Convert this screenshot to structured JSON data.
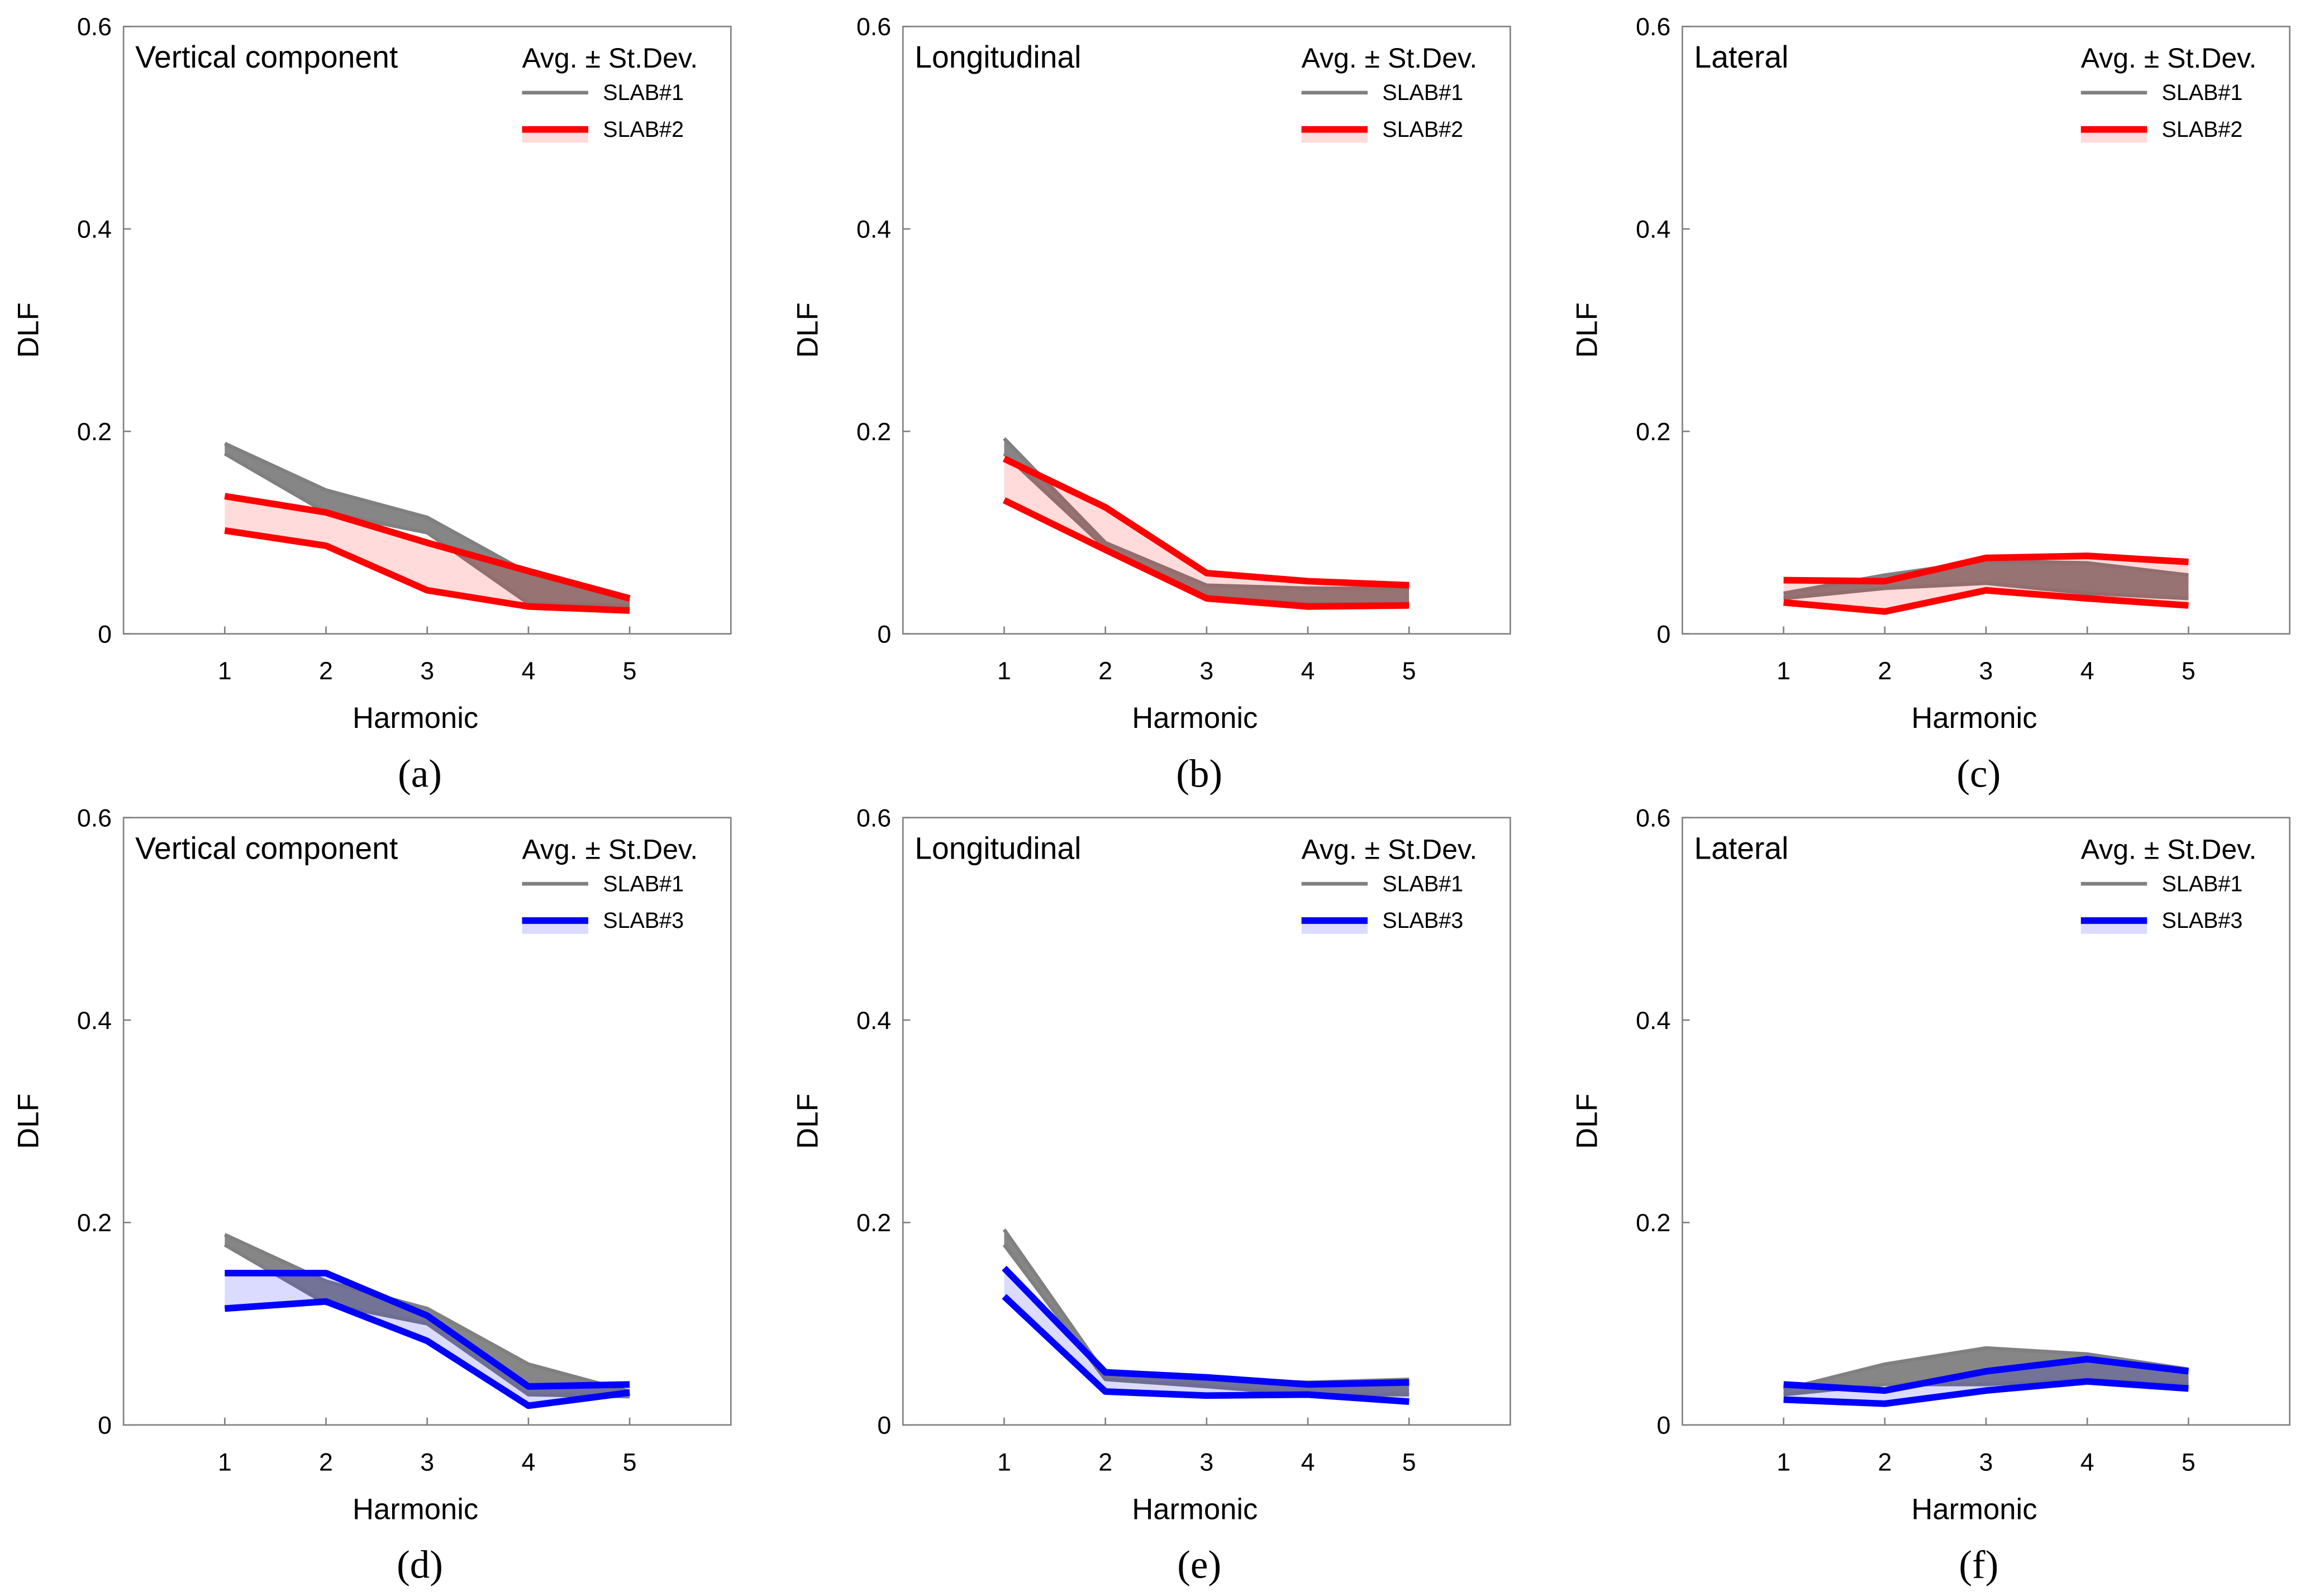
{
  "chart_data": [
    {
      "type": "band",
      "label": "(a)",
      "title": "Vertical component",
      "legend_title": "Avg. ± St.Dev.",
      "x_label": "Harmonic",
      "y_label": "DLF",
      "x": [
        1,
        2,
        3,
        4,
        5
      ],
      "xlim": [
        0,
        6
      ],
      "xticks": [
        1,
        2,
        3,
        4,
        5
      ],
      "ylim": [
        0,
        0.6
      ],
      "yticks": [
        0,
        0.2,
        0.4,
        0.6
      ],
      "series": [
        {
          "name": "SLAB#1",
          "color": "#808080",
          "upper": [
            0.188,
            0.142,
            0.115,
            0.06,
            0.033
          ],
          "lower": [
            0.178,
            0.12,
            0.1,
            0.03,
            0.028
          ]
        },
        {
          "name": "SLAB#2",
          "color": "#ff0000",
          "upper": [
            0.136,
            0.12,
            0.09,
            0.062,
            0.035
          ],
          "lower": [
            0.102,
            0.087,
            0.043,
            0.027,
            0.023
          ]
        }
      ]
    },
    {
      "type": "band",
      "label": "(b)",
      "title": "Longitudinal",
      "legend_title": "Avg. ± St.Dev.",
      "x_label": "Harmonic",
      "y_label": "DLF",
      "x": [
        1,
        2,
        3,
        4,
        5
      ],
      "xlim": [
        0,
        6
      ],
      "xticks": [
        1,
        2,
        3,
        4,
        5
      ],
      "ylim": [
        0,
        0.6
      ],
      "yticks": [
        0,
        0.2,
        0.4,
        0.6
      ],
      "series": [
        {
          "name": "SLAB#1",
          "color": "#808080",
          "upper": [
            0.193,
            0.09,
            0.048,
            0.045,
            0.045
          ],
          "lower": [
            0.178,
            0.085,
            0.035,
            0.03,
            0.03
          ]
        },
        {
          "name": "SLAB#2",
          "color": "#ff0000",
          "upper": [
            0.173,
            0.125,
            0.06,
            0.052,
            0.048
          ],
          "lower": [
            0.132,
            0.083,
            0.035,
            0.027,
            0.028
          ]
        }
      ]
    },
    {
      "type": "band",
      "label": "(c)",
      "title": "Lateral",
      "legend_title": "Avg. ± St.Dev.",
      "x_label": "Harmonic",
      "y_label": "DLF",
      "x": [
        1,
        2,
        3,
        4,
        5
      ],
      "xlim": [
        0,
        6
      ],
      "xticks": [
        1,
        2,
        3,
        4,
        5
      ],
      "ylim": [
        0,
        0.6
      ],
      "yticks": [
        0,
        0.2,
        0.4,
        0.6
      ],
      "series": [
        {
          "name": "SLAB#1",
          "color": "#808080",
          "upper": [
            0.04,
            0.058,
            0.072,
            0.07,
            0.058
          ],
          "lower": [
            0.035,
            0.045,
            0.05,
            0.04,
            0.035
          ]
        },
        {
          "name": "SLAB#2",
          "color": "#ff0000",
          "upper": [
            0.053,
            0.052,
            0.075,
            0.077,
            0.071
          ],
          "lower": [
            0.031,
            0.022,
            0.043,
            0.035,
            0.028
          ]
        }
      ]
    },
    {
      "type": "band",
      "label": "(d)",
      "title": "Vertical component",
      "legend_title": "Avg. ± St.Dev.",
      "x_label": "Harmonic",
      "y_label": "DLF",
      "x": [
        1,
        2,
        3,
        4,
        5
      ],
      "xlim": [
        0,
        6
      ],
      "xticks": [
        1,
        2,
        3,
        4,
        5
      ],
      "ylim": [
        0,
        0.6
      ],
      "yticks": [
        0,
        0.2,
        0.4,
        0.6
      ],
      "series": [
        {
          "name": "SLAB#1",
          "color": "#808080",
          "upper": [
            0.188,
            0.142,
            0.115,
            0.06,
            0.033
          ],
          "lower": [
            0.178,
            0.12,
            0.1,
            0.03,
            0.028
          ]
        },
        {
          "name": "SLAB#3",
          "color": "#0000ff",
          "upper": [
            0.15,
            0.15,
            0.108,
            0.038,
            0.04
          ],
          "lower": [
            0.115,
            0.122,
            0.083,
            0.019,
            0.032
          ]
        }
      ]
    },
    {
      "type": "band",
      "label": "(e)",
      "title": "Longitudinal",
      "legend_title": "Avg. ± St.Dev.",
      "x_label": "Harmonic",
      "y_label": "DLF",
      "x": [
        1,
        2,
        3,
        4,
        5
      ],
      "xlim": [
        0,
        6
      ],
      "xticks": [
        1,
        2,
        3,
        4,
        5
      ],
      "ylim": [
        0,
        0.6
      ],
      "yticks": [
        0,
        0.2,
        0.4,
        0.6
      ],
      "series": [
        {
          "name": "SLAB#1",
          "color": "#808080",
          "upper": [
            0.193,
            0.05,
            0.045,
            0.042,
            0.045
          ],
          "lower": [
            0.178,
            0.045,
            0.038,
            0.03,
            0.03
          ]
        },
        {
          "name": "SLAB#3",
          "color": "#0000ff",
          "upper": [
            0.155,
            0.052,
            0.047,
            0.04,
            0.042
          ],
          "lower": [
            0.127,
            0.033,
            0.029,
            0.03,
            0.023
          ]
        }
      ]
    },
    {
      "type": "band",
      "label": "(f)",
      "title": "Lateral",
      "legend_title": "Avg. ± St.Dev.",
      "x_label": "Harmonic",
      "y_label": "DLF",
      "x": [
        1,
        2,
        3,
        4,
        5
      ],
      "xlim": [
        0,
        6
      ],
      "xticks": [
        1,
        2,
        3,
        4,
        5
      ],
      "ylim": [
        0,
        0.6
      ],
      "yticks": [
        0,
        0.2,
        0.4,
        0.6
      ],
      "series": [
        {
          "name": "SLAB#1",
          "color": "#808080",
          "upper": [
            0.035,
            0.06,
            0.076,
            0.07,
            0.055
          ],
          "lower": [
            0.03,
            0.04,
            0.04,
            0.045,
            0.04
          ]
        },
        {
          "name": "SLAB#3",
          "color": "#0000ff",
          "upper": [
            0.04,
            0.034,
            0.053,
            0.065,
            0.053
          ],
          "lower": [
            0.025,
            0.021,
            0.034,
            0.043,
            0.036
          ]
        }
      ]
    }
  ]
}
